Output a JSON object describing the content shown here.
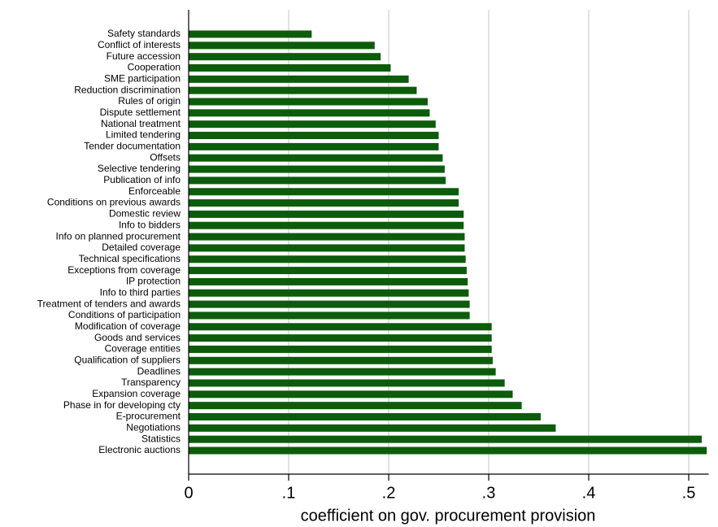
{
  "chart_data": {
    "type": "barh",
    "x_label": "coefficient on gov. procurement provision",
    "categories": [
      "Safety standards",
      "Conflict of interests",
      "Future accession",
      "Cooperation",
      "SME participation",
      "Reduction discrimination",
      "Rules of origin",
      "Dispute settlement",
      "National treatment",
      "Limited tendering",
      "Tender documentation",
      "Offsets",
      "Selective tendering",
      "Publication of info",
      "Enforceable",
      "Conditions on previous awards",
      "Domestic review",
      "Info to bidders",
      "Info on planned procurement",
      "Detailed coverage",
      "Technical specifications",
      "Exceptions from coverage",
      "IP protection",
      "Info to third parties",
      "Treatment of tenders and awards",
      "Conditions of participation",
      "Modification of coverage",
      "Goods and services",
      "Coverage entities",
      "Qualification of suppliers",
      "Deadlines",
      "Transparency",
      "Expansion coverage",
      "Phase in for developing cty",
      "E-procurement",
      "Negotiations",
      "Statistics",
      "Electronic auctions"
    ],
    "values": [
      0.123,
      0.186,
      0.192,
      0.202,
      0.22,
      0.228,
      0.239,
      0.241,
      0.247,
      0.25,
      0.25,
      0.254,
      0.256,
      0.257,
      0.27,
      0.27,
      0.275,
      0.275,
      0.276,
      0.276,
      0.277,
      0.278,
      0.279,
      0.28,
      0.281,
      0.281,
      0.303,
      0.303,
      0.303,
      0.304,
      0.307,
      0.316,
      0.324,
      0.333,
      0.352,
      0.367,
      0.513,
      0.518
    ],
    "color": "#0c5c0c",
    "xlim": [
      0,
      0.52
    ],
    "xticks": [
      0,
      {
        "value": 0.1,
        "label": ".1"
      },
      {
        "value": 0.2,
        "label": ".2"
      },
      {
        "value": 0.3,
        "label": ".3"
      },
      {
        "value": 0.4,
        "label": ".4"
      },
      {
        "value": 0.5,
        "label": ".5"
      }
    ],
    "grid": true
  }
}
